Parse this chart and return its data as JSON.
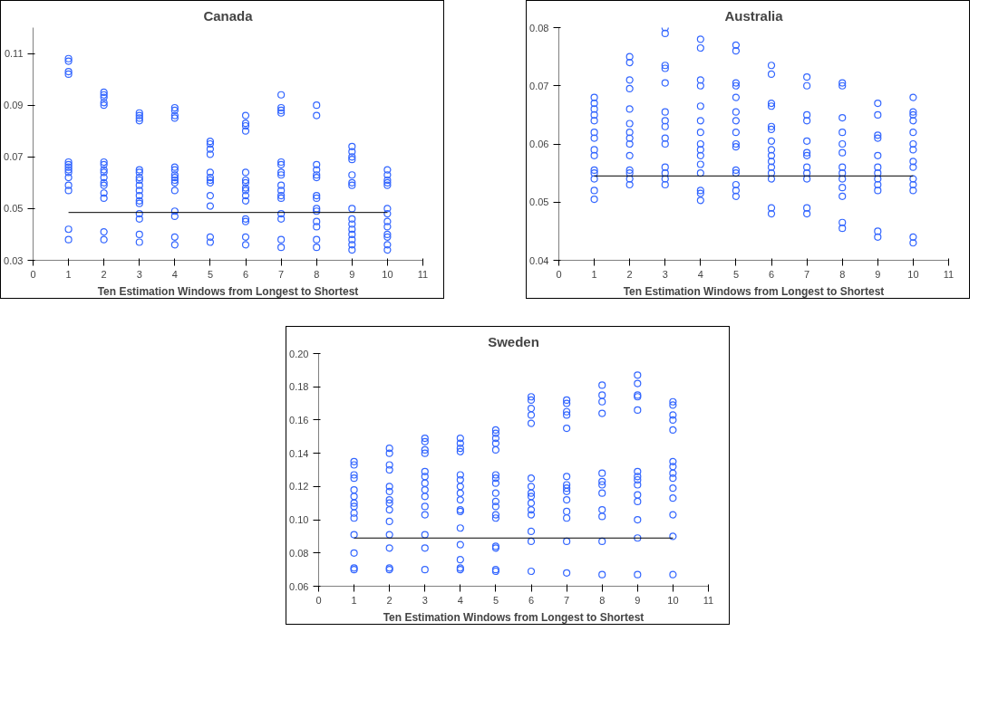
{
  "chart_data": [
    {
      "type": "scatter",
      "title": "Canada",
      "xlabel": "Ten Estimation Windows from Longest to Shortest",
      "xlim": [
        0,
        11
      ],
      "xticks": [
        0,
        1,
        2,
        3,
        4,
        5,
        6,
        7,
        8,
        9,
        10,
        11
      ],
      "ylim": [
        0.03,
        0.12
      ],
      "yticks": [
        0.03,
        0.05,
        0.07,
        0.09,
        0.11
      ],
      "grid": false,
      "series": [
        {
          "marker": "circle",
          "color": "#3366ff",
          "x": [
            1,
            1,
            1,
            1,
            1,
            1,
            1,
            1,
            1,
            1,
            1,
            1,
            1,
            1,
            2,
            2,
            2,
            2,
            2,
            2,
            2,
            2,
            2,
            2,
            2,
            2,
            2,
            2,
            2,
            2,
            3,
            3,
            3,
            3,
            3,
            3,
            3,
            3,
            3,
            3,
            3,
            3,
            3,
            3,
            3,
            3,
            3,
            4,
            4,
            4,
            4,
            4,
            4,
            4,
            4,
            4,
            4,
            4,
            4,
            4,
            4,
            4,
            5,
            5,
            5,
            5,
            5,
            5,
            5,
            5,
            5,
            5,
            5,
            5,
            6,
            6,
            6,
            6,
            6,
            6,
            6,
            6,
            6,
            6,
            6,
            6,
            6,
            6,
            6,
            7,
            7,
            7,
            7,
            7,
            7,
            7,
            7,
            7,
            7,
            7,
            7,
            7,
            7,
            7,
            7,
            8,
            8,
            8,
            8,
            8,
            8,
            8,
            8,
            8,
            8,
            8,
            8,
            8,
            8,
            9,
            9,
            9,
            9,
            9,
            9,
            9,
            9,
            9,
            9,
            9,
            9,
            9,
            9,
            9,
            10,
            10,
            10,
            10,
            10,
            10,
            10,
            10,
            10,
            10,
            10,
            10,
            10
          ],
          "values": [
            0.108,
            0.107,
            0.103,
            0.102,
            0.068,
            0.067,
            0.066,
            0.065,
            0.064,
            0.062,
            0.059,
            0.057,
            0.042,
            0.038,
            0.095,
            0.094,
            0.093,
            0.091,
            0.09,
            0.068,
            0.067,
            0.065,
            0.064,
            0.062,
            0.06,
            0.059,
            0.056,
            0.054,
            0.041,
            0.038,
            0.087,
            0.086,
            0.085,
            0.084,
            0.065,
            0.064,
            0.062,
            0.061,
            0.059,
            0.057,
            0.055,
            0.053,
            0.052,
            0.048,
            0.046,
            0.04,
            0.037,
            0.089,
            0.088,
            0.086,
            0.085,
            0.066,
            0.065,
            0.063,
            0.062,
            0.061,
            0.06,
            0.057,
            0.049,
            0.047,
            0.039,
            0.036,
            0.076,
            0.075,
            0.073,
            0.071,
            0.064,
            0.062,
            0.061,
            0.06,
            0.055,
            0.051,
            0.039,
            0.037,
            0.086,
            0.083,
            0.082,
            0.08,
            0.064,
            0.061,
            0.06,
            0.058,
            0.057,
            0.055,
            0.053,
            0.046,
            0.045,
            0.039,
            0.036,
            0.094,
            0.089,
            0.088,
            0.087,
            0.068,
            0.067,
            0.064,
            0.063,
            0.059,
            0.057,
            0.055,
            0.054,
            0.048,
            0.046,
            0.038,
            0.035,
            0.09,
            0.086,
            0.067,
            0.065,
            0.063,
            0.062,
            0.055,
            0.054,
            0.05,
            0.049,
            0.045,
            0.043,
            0.038,
            0.035,
            0.074,
            0.072,
            0.07,
            0.069,
            0.063,
            0.06,
            0.059,
            0.05,
            0.046,
            0.044,
            0.042,
            0.04,
            0.038,
            0.036,
            0.034,
            0.065,
            0.063,
            0.061,
            0.06,
            0.059,
            0.05,
            0.048,
            0.045,
            0.043,
            0.04,
            0.039,
            0.036,
            0.034
          ]
        },
        {
          "type": "line",
          "marker": "none",
          "color": "#000000",
          "x": [
            1,
            10
          ],
          "values": [
            0.0485,
            0.0485
          ]
        }
      ]
    },
    {
      "type": "scatter",
      "title": "Australia",
      "xlabel": "Ten Estimation Windows from Longest to Shortest",
      "xlim": [
        0,
        11
      ],
      "xticks": [
        0,
        1,
        2,
        3,
        4,
        5,
        6,
        7,
        8,
        9,
        10,
        11
      ],
      "ylim": [
        0.04,
        0.08
      ],
      "yticks": [
        0.04,
        0.05,
        0.06,
        0.07,
        0.08
      ],
      "grid": false,
      "series": [
        {
          "marker": "circle",
          "color": "#3366ff",
          "x": [
            1,
            1,
            1,
            1,
            1,
            1,
            1,
            1,
            1,
            1,
            1,
            1,
            1,
            1,
            2,
            2,
            2,
            2,
            2,
            2,
            2,
            2,
            2,
            2,
            2,
            2,
            2,
            2,
            3,
            3,
            3,
            3,
            3,
            3,
            3,
            3,
            3,
            3,
            3,
            3,
            3,
            3,
            4,
            4,
            4,
            4,
            4,
            4,
            4,
            4,
            4,
            4,
            4,
            4,
            4,
            4,
            4,
            5,
            5,
            5,
            5,
            5,
            5,
            5,
            5,
            5,
            5,
            5,
            5,
            5,
            5,
            5,
            6,
            6,
            6,
            6,
            6,
            6,
            6,
            6,
            6,
            6,
            6,
            6,
            6,
            6,
            6,
            7,
            7,
            7,
            7,
            7,
            7,
            7,
            7,
            7,
            7,
            7,
            7,
            8,
            8,
            8,
            8,
            8,
            8,
            8,
            8,
            8,
            8,
            8,
            8,
            8,
            9,
            9,
            9,
            9,
            9,
            9,
            9,
            9,
            9,
            9,
            9,
            9,
            10,
            10,
            10,
            10,
            10,
            10,
            10,
            10,
            10,
            10,
            10,
            10,
            10,
            10
          ],
          "values": [
            0.068,
            0.067,
            0.066,
            0.065,
            0.064,
            0.062,
            0.061,
            0.059,
            0.058,
            0.0555,
            0.055,
            0.054,
            0.052,
            0.0505,
            0.075,
            0.074,
            0.071,
            0.0695,
            0.066,
            0.0635,
            0.062,
            0.061,
            0.06,
            0.058,
            0.0555,
            0.055,
            0.054,
            0.053,
            0.08,
            0.079,
            0.0735,
            0.073,
            0.0705,
            0.0655,
            0.064,
            0.063,
            0.061,
            0.06,
            0.056,
            0.055,
            0.054,
            0.053,
            0.078,
            0.0765,
            0.071,
            0.07,
            0.0665,
            0.064,
            0.062,
            0.06,
            0.059,
            0.058,
            0.0565,
            0.055,
            0.052,
            0.0515,
            0.0503,
            0.077,
            0.076,
            0.0705,
            0.07,
            0.068,
            0.0655,
            0.064,
            0.062,
            0.06,
            0.0595,
            0.0555,
            0.055,
            0.053,
            0.052,
            0.051,
            0.0735,
            0.072,
            0.067,
            0.0665,
            0.063,
            0.0625,
            0.0605,
            0.059,
            0.058,
            0.057,
            0.056,
            0.055,
            0.054,
            0.049,
            0.048,
            0.0715,
            0.07,
            0.065,
            0.064,
            0.0605,
            0.0585,
            0.058,
            0.056,
            0.055,
            0.054,
            0.049,
            0.048,
            0.0705,
            0.07,
            0.0645,
            0.062,
            0.06,
            0.0585,
            0.056,
            0.055,
            0.054,
            0.0525,
            0.051,
            0.0465,
            0.0455,
            0.067,
            0.065,
            0.0615,
            0.061,
            0.058,
            0.056,
            0.055,
            0.054,
            0.053,
            0.052,
            0.045,
            0.044,
            0.068,
            0.0655,
            0.065,
            0.064,
            0.062,
            0.06,
            0.059,
            0.057,
            0.056,
            0.054,
            0.053,
            0.052,
            0.044,
            0.043
          ]
        },
        {
          "type": "line",
          "marker": "none",
          "color": "#000000",
          "x": [
            1,
            10
          ],
          "values": [
            0.0545,
            0.0545
          ]
        }
      ]
    },
    {
      "type": "scatter",
      "title": "Sweden",
      "xlabel": "Ten Estimation Windows from Longest to Shortest",
      "xlim": [
        0,
        11
      ],
      "xticks": [
        0,
        1,
        2,
        3,
        4,
        5,
        6,
        7,
        8,
        9,
        10,
        11
      ],
      "ylim": [
        0.06,
        0.2
      ],
      "yticks": [
        {
          "value": 0.06,
          "label": "0.06"
        },
        {
          "value": 0.08,
          "label": "0.08"
        },
        {
          "value": 0.1,
          "label": "0.10"
        },
        {
          "value": 0.12,
          "label": "0.12"
        },
        {
          "value": 0.14,
          "label": "0.14"
        },
        {
          "value": 0.16,
          "label": "0.16"
        },
        {
          "value": 0.18,
          "label": "0.18"
        },
        {
          "value": 0.2,
          "label": "0.20"
        }
      ],
      "grid": false,
      "series": [
        {
          "marker": "circle",
          "color": "#3366ff",
          "x": [
            1,
            1,
            1,
            1,
            1,
            1,
            1,
            1,
            1,
            1,
            1,
            1,
            1,
            1,
            2,
            2,
            2,
            2,
            2,
            2,
            2,
            2,
            2,
            2,
            2,
            2,
            2,
            2,
            3,
            3,
            3,
            3,
            3,
            3,
            3,
            3,
            3,
            3,
            3,
            3,
            3,
            3,
            4,
            4,
            4,
            4,
            4,
            4,
            4,
            4,
            4,
            4,
            4,
            4,
            4,
            4,
            4,
            4,
            5,
            5,
            5,
            5,
            5,
            5,
            5,
            5,
            5,
            5,
            5,
            5,
            5,
            5,
            5,
            5,
            5,
            6,
            6,
            6,
            6,
            6,
            6,
            6,
            6,
            6,
            6,
            6,
            6,
            6,
            6,
            6,
            7,
            7,
            7,
            7,
            7,
            7,
            7,
            7,
            7,
            7,
            7,
            7,
            7,
            7,
            8,
            8,
            8,
            8,
            8,
            8,
            8,
            8,
            8,
            8,
            8,
            8,
            9,
            9,
            9,
            9,
            9,
            9,
            9,
            9,
            9,
            9,
            9,
            9,
            9,
            9,
            10,
            10,
            10,
            10,
            10,
            10,
            10,
            10,
            10,
            10,
            10,
            10,
            10,
            10
          ],
          "values": [
            0.135,
            0.133,
            0.127,
            0.125,
            0.118,
            0.114,
            0.11,
            0.108,
            0.104,
            0.101,
            0.091,
            0.08,
            0.071,
            0.07,
            0.143,
            0.14,
            0.133,
            0.13,
            0.12,
            0.117,
            0.112,
            0.11,
            0.106,
            0.099,
            0.091,
            0.083,
            0.071,
            0.07,
            0.149,
            0.147,
            0.142,
            0.14,
            0.129,
            0.126,
            0.122,
            0.118,
            0.114,
            0.108,
            0.103,
            0.091,
            0.083,
            0.07,
            0.149,
            0.146,
            0.143,
            0.141,
            0.127,
            0.124,
            0.12,
            0.116,
            0.112,
            0.106,
            0.105,
            0.095,
            0.085,
            0.076,
            0.071,
            0.07,
            0.154,
            0.152,
            0.149,
            0.146,
            0.142,
            0.127,
            0.125,
            0.122,
            0.116,
            0.111,
            0.108,
            0.103,
            0.101,
            0.084,
            0.083,
            0.07,
            0.069,
            0.174,
            0.172,
            0.167,
            0.163,
            0.158,
            0.125,
            0.12,
            0.116,
            0.114,
            0.11,
            0.106,
            0.103,
            0.093,
            0.087,
            0.069,
            0.172,
            0.17,
            0.165,
            0.163,
            0.155,
            0.126,
            0.121,
            0.119,
            0.117,
            0.112,
            0.105,
            0.101,
            0.087,
            0.068,
            0.181,
            0.175,
            0.171,
            0.164,
            0.128,
            0.123,
            0.121,
            0.116,
            0.106,
            0.102,
            0.087,
            0.067,
            0.187,
            0.182,
            0.175,
            0.174,
            0.166,
            0.129,
            0.126,
            0.124,
            0.121,
            0.115,
            0.111,
            0.1,
            0.089,
            0.067,
            0.171,
            0.169,
            0.163,
            0.16,
            0.154,
            0.135,
            0.132,
            0.128,
            0.125,
            0.119,
            0.113,
            0.103,
            0.09,
            0.067
          ]
        },
        {
          "type": "line",
          "marker": "none",
          "color": "#000000",
          "x": [
            1,
            10
          ],
          "values": [
            0.089,
            0.089
          ]
        }
      ]
    }
  ]
}
